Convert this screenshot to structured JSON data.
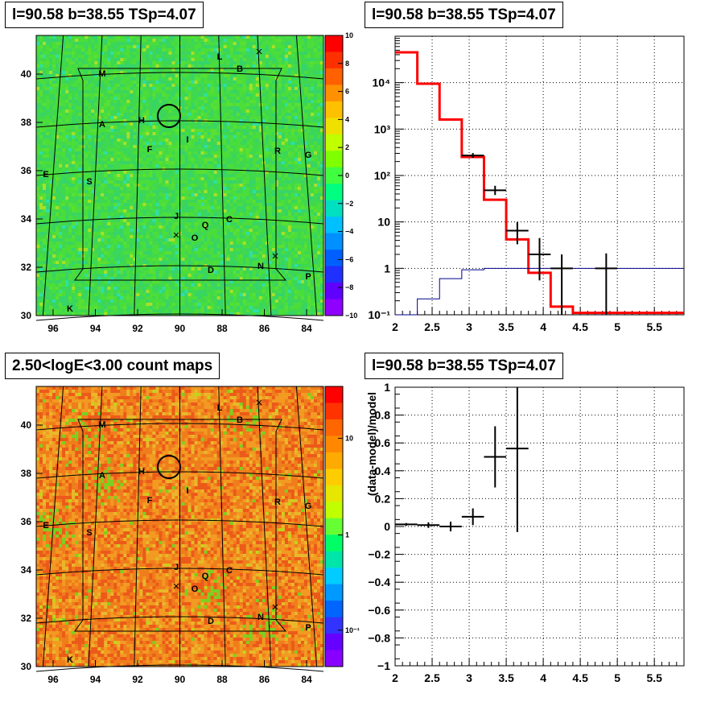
{
  "colors": {
    "axis": "#000000",
    "grid": "#000000",
    "model_line": "#ff0000",
    "background_line": "#00008b",
    "data_marks": "#000000"
  },
  "panels": {
    "tl": {
      "title": "l=90.58 b=38.55 TSp=4.07",
      "x_ticks": [
        "96",
        "94",
        "92",
        "90",
        "88",
        "86",
        "84"
      ],
      "y_ticks": [
        "30",
        "32",
        "34",
        "36",
        "38",
        "40"
      ],
      "colorbar_ticks": [
        "10",
        "8",
        "6",
        "4",
        "2",
        "0",
        "−2",
        "−4",
        "−6",
        "−8",
        "−10"
      ],
      "colormap": "rainbow, green near zero",
      "source_labels": [
        "L",
        "B",
        "M",
        "H",
        "A",
        "I",
        "F",
        "R",
        "G",
        "E",
        "S",
        "J",
        "Q",
        "C",
        "O",
        "D",
        "N",
        "P",
        "K"
      ]
    },
    "tr": {
      "title": "l=90.58 b=38.55 TSp=4.07"
    },
    "bl": {
      "title": "2.50<logE<3.00 count maps",
      "x_ticks": [
        "96",
        "94",
        "92",
        "90",
        "88",
        "86",
        "84"
      ],
      "y_ticks": [
        "30",
        "32",
        "34",
        "36",
        "38",
        "40"
      ],
      "colorbar_ticks": [
        "10",
        "1",
        "10⁻¹"
      ],
      "colormap": "orange-red dominant, log scale",
      "source_labels": [
        "L",
        "B",
        "M",
        "H",
        "A",
        "I",
        "F",
        "R",
        "G",
        "E",
        "S",
        "J",
        "Q",
        "C",
        "O",
        "D",
        "N",
        "P",
        "K"
      ]
    },
    "br": {
      "title": "l=90.58 b=38.55 TSp=4.07"
    }
  },
  "chart_data": [
    {
      "type": "line",
      "panel": "top-right spectrum",
      "title": "l=90.58 b=38.55 TSp=4.07",
      "xlabel": "",
      "ylabel": "",
      "xlim": [
        2,
        5.9
      ],
      "ylim": [
        0.1,
        100000
      ],
      "yscale": "log",
      "grid": true,
      "x_tick_labels": [
        "2",
        "2.5",
        "3",
        "3.5",
        "4",
        "4.5",
        "5",
        "5.5"
      ],
      "y_tick_labels": [
        "10⁻¹",
        "1",
        "10",
        "10²",
        "10³",
        "10⁴"
      ],
      "series": [
        {
          "kind": "step",
          "edges": [
            2.0,
            2.3,
            2.6,
            2.9,
            3.2,
            3.5,
            3.8,
            4.1,
            4.4,
            5.9
          ],
          "values": [
            45000,
            9500,
            1600,
            250,
            30,
            4.2,
            0.8,
            0.15,
            0.11
          ]
        },
        {
          "kind": "step",
          "edges": [
            2.0,
            2.3,
            2.6,
            2.9,
            3.2,
            3.5,
            3.8,
            4.1,
            4.4,
            5.9
          ],
          "values": [
            0.05,
            0.22,
            0.6,
            0.93,
            1.0,
            1.0,
            1.0,
            1.0,
            1.0
          ]
        },
        {
          "kind": "errorbar",
          "x": [
            3.05,
            3.35,
            3.65,
            3.95,
            4.25,
            4.85
          ],
          "y": [
            270,
            48,
            6.5,
            2.0,
            1.0,
            1.0
          ],
          "xerr": [
            0.15,
            0.15,
            0.15,
            0.15,
            0.15,
            0.15
          ],
          "ylow": [
            240,
            38,
            3.3,
            0.55,
            0.05,
            0.05
          ],
          "yhigh": [
            305,
            60,
            10,
            4.5,
            2.0,
            2.1
          ]
        }
      ]
    },
    {
      "type": "scatter",
      "panel": "bottom-right residuals",
      "title": "l=90.58 b=38.55 TSp=4.07",
      "xlabel": "",
      "ylabel": "(data-model)/model",
      "xlim": [
        2,
        5.9
      ],
      "ylim": [
        -1,
        1
      ],
      "grid": true,
      "x_tick_labels": [
        "2",
        "2.5",
        "3",
        "3.5",
        "4",
        "4.5",
        "5",
        "5.5"
      ],
      "y_tick_labels": [
        "−1",
        "−0.8",
        "−0.6",
        "−0.4",
        "−0.2",
        "0",
        "0.2",
        "0.4",
        "0.6",
        "0.8",
        "1"
      ],
      "series": [
        {
          "kind": "errorbar",
          "x": [
            2.15,
            2.45,
            2.75,
            3.05,
            3.35,
            3.65
          ],
          "y": [
            0.015,
            0.01,
            0.0,
            0.07,
            0.5,
            0.56
          ],
          "xerr": [
            0.15,
            0.15,
            0.15,
            0.15,
            0.15,
            0.15
          ],
          "yerr": [
            0.01,
            0.02,
            0.035,
            0.06,
            0.22,
            0.6
          ]
        }
      ]
    }
  ]
}
